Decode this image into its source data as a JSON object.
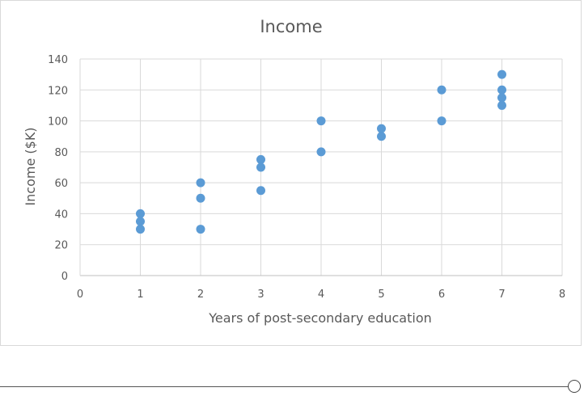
{
  "chart_data": {
    "type": "scatter",
    "title": "Income",
    "xlabel": "Years of post-secondary education",
    "ylabel": "Income ($K)",
    "xlim": [
      0,
      8
    ],
    "ylim": [
      0,
      140
    ],
    "x_ticks": [
      "0",
      "1",
      "2",
      "3",
      "4",
      "5",
      "6",
      "7",
      "8"
    ],
    "y_ticks": [
      "0",
      "20",
      "40",
      "60",
      "80",
      "100",
      "120",
      "140"
    ],
    "grid": true,
    "legend": "none",
    "marker_color": "#5B9BD5",
    "series": [
      {
        "points": [
          {
            "x": 1,
            "y": 40
          },
          {
            "x": 1,
            "y": 35
          },
          {
            "x": 1,
            "y": 30
          },
          {
            "x": 2,
            "y": 60
          },
          {
            "x": 2,
            "y": 50
          },
          {
            "x": 2,
            "y": 30
          },
          {
            "x": 3,
            "y": 75
          },
          {
            "x": 3,
            "y": 70
          },
          {
            "x": 3,
            "y": 55
          },
          {
            "x": 4,
            "y": 100
          },
          {
            "x": 4,
            "y": 80
          },
          {
            "x": 5,
            "y": 95
          },
          {
            "x": 5,
            "y": 90
          },
          {
            "x": 6,
            "y": 120
          },
          {
            "x": 6,
            "y": 100
          },
          {
            "x": 7,
            "y": 130
          },
          {
            "x": 7,
            "y": 120
          },
          {
            "x": 7,
            "y": 115
          },
          {
            "x": 7,
            "y": 110
          }
        ]
      }
    ]
  }
}
